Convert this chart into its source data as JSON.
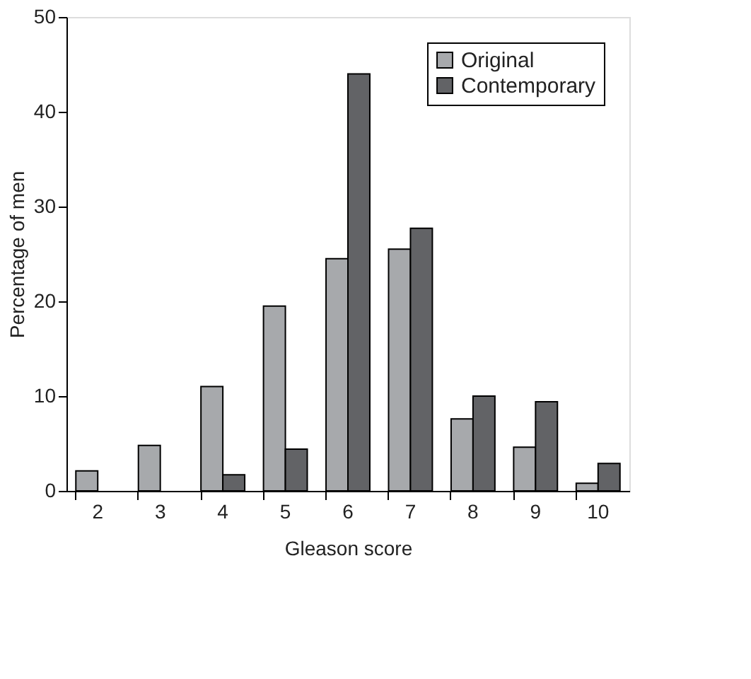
{
  "chart_data": {
    "type": "bar",
    "xlabel": "Gleason score",
    "ylabel": "Percentage of men",
    "categories": [
      "2",
      "3",
      "4",
      "5",
      "6",
      "7",
      "8",
      "9",
      "10"
    ],
    "series": [
      {
        "name": "Original",
        "color": "#a7a9ac",
        "values": [
          2.1,
          4.8,
          11,
          19.5,
          24.5,
          25.5,
          7.6,
          4.6,
          0.8
        ]
      },
      {
        "name": "Contemporary",
        "color": "#626366",
        "values": [
          null,
          null,
          1.7,
          4.4,
          44,
          27.7,
          10,
          9.4,
          2.9
        ]
      }
    ],
    "ylim": [
      0,
      50
    ],
    "yticks": [
      0,
      10,
      20,
      30,
      40,
      50
    ],
    "grid": false,
    "legend": "top right"
  }
}
